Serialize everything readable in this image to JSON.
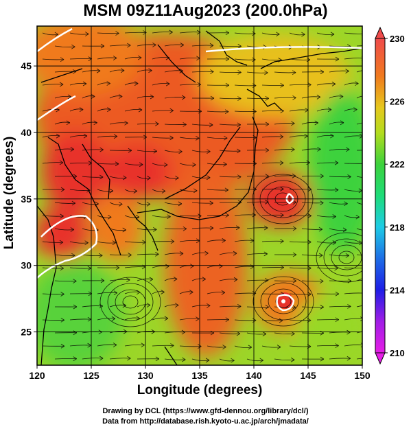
{
  "title": "MSM 09Z11Aug2023 (200.0hPa)",
  "xlabel": "Longitude (degrees)",
  "ylabel": "Latitude  (degrees)",
  "x_ticks": [
    "120",
    "125",
    "130",
    "135",
    "140",
    "145",
    "150"
  ],
  "y_ticks": [
    "25",
    "30",
    "35",
    "40",
    "45"
  ],
  "colorbar_ticks": [
    "230",
    "226",
    "222",
    "218",
    "214",
    "210"
  ],
  "footer": {
    "line1": "Drawing by DCL (https://www.gfd-dennou.org/library/dcl/)",
    "line2": "Data from http://database.rish.kyoto-u.ac.jp/arch/jmadata/"
  },
  "colors": {
    "high": "#e8322a",
    "warm": "#f07a1e",
    "mid": "#d8dc1e",
    "low": "#3cd23c",
    "colorbar_min": "#e61ee6",
    "colorbar_max": "#f04b4b"
  },
  "map": {
    "lon_range": [
      120,
      150
    ],
    "lat_range": [
      22.5,
      48
    ],
    "colorbar_range": [
      210,
      230
    ]
  }
}
